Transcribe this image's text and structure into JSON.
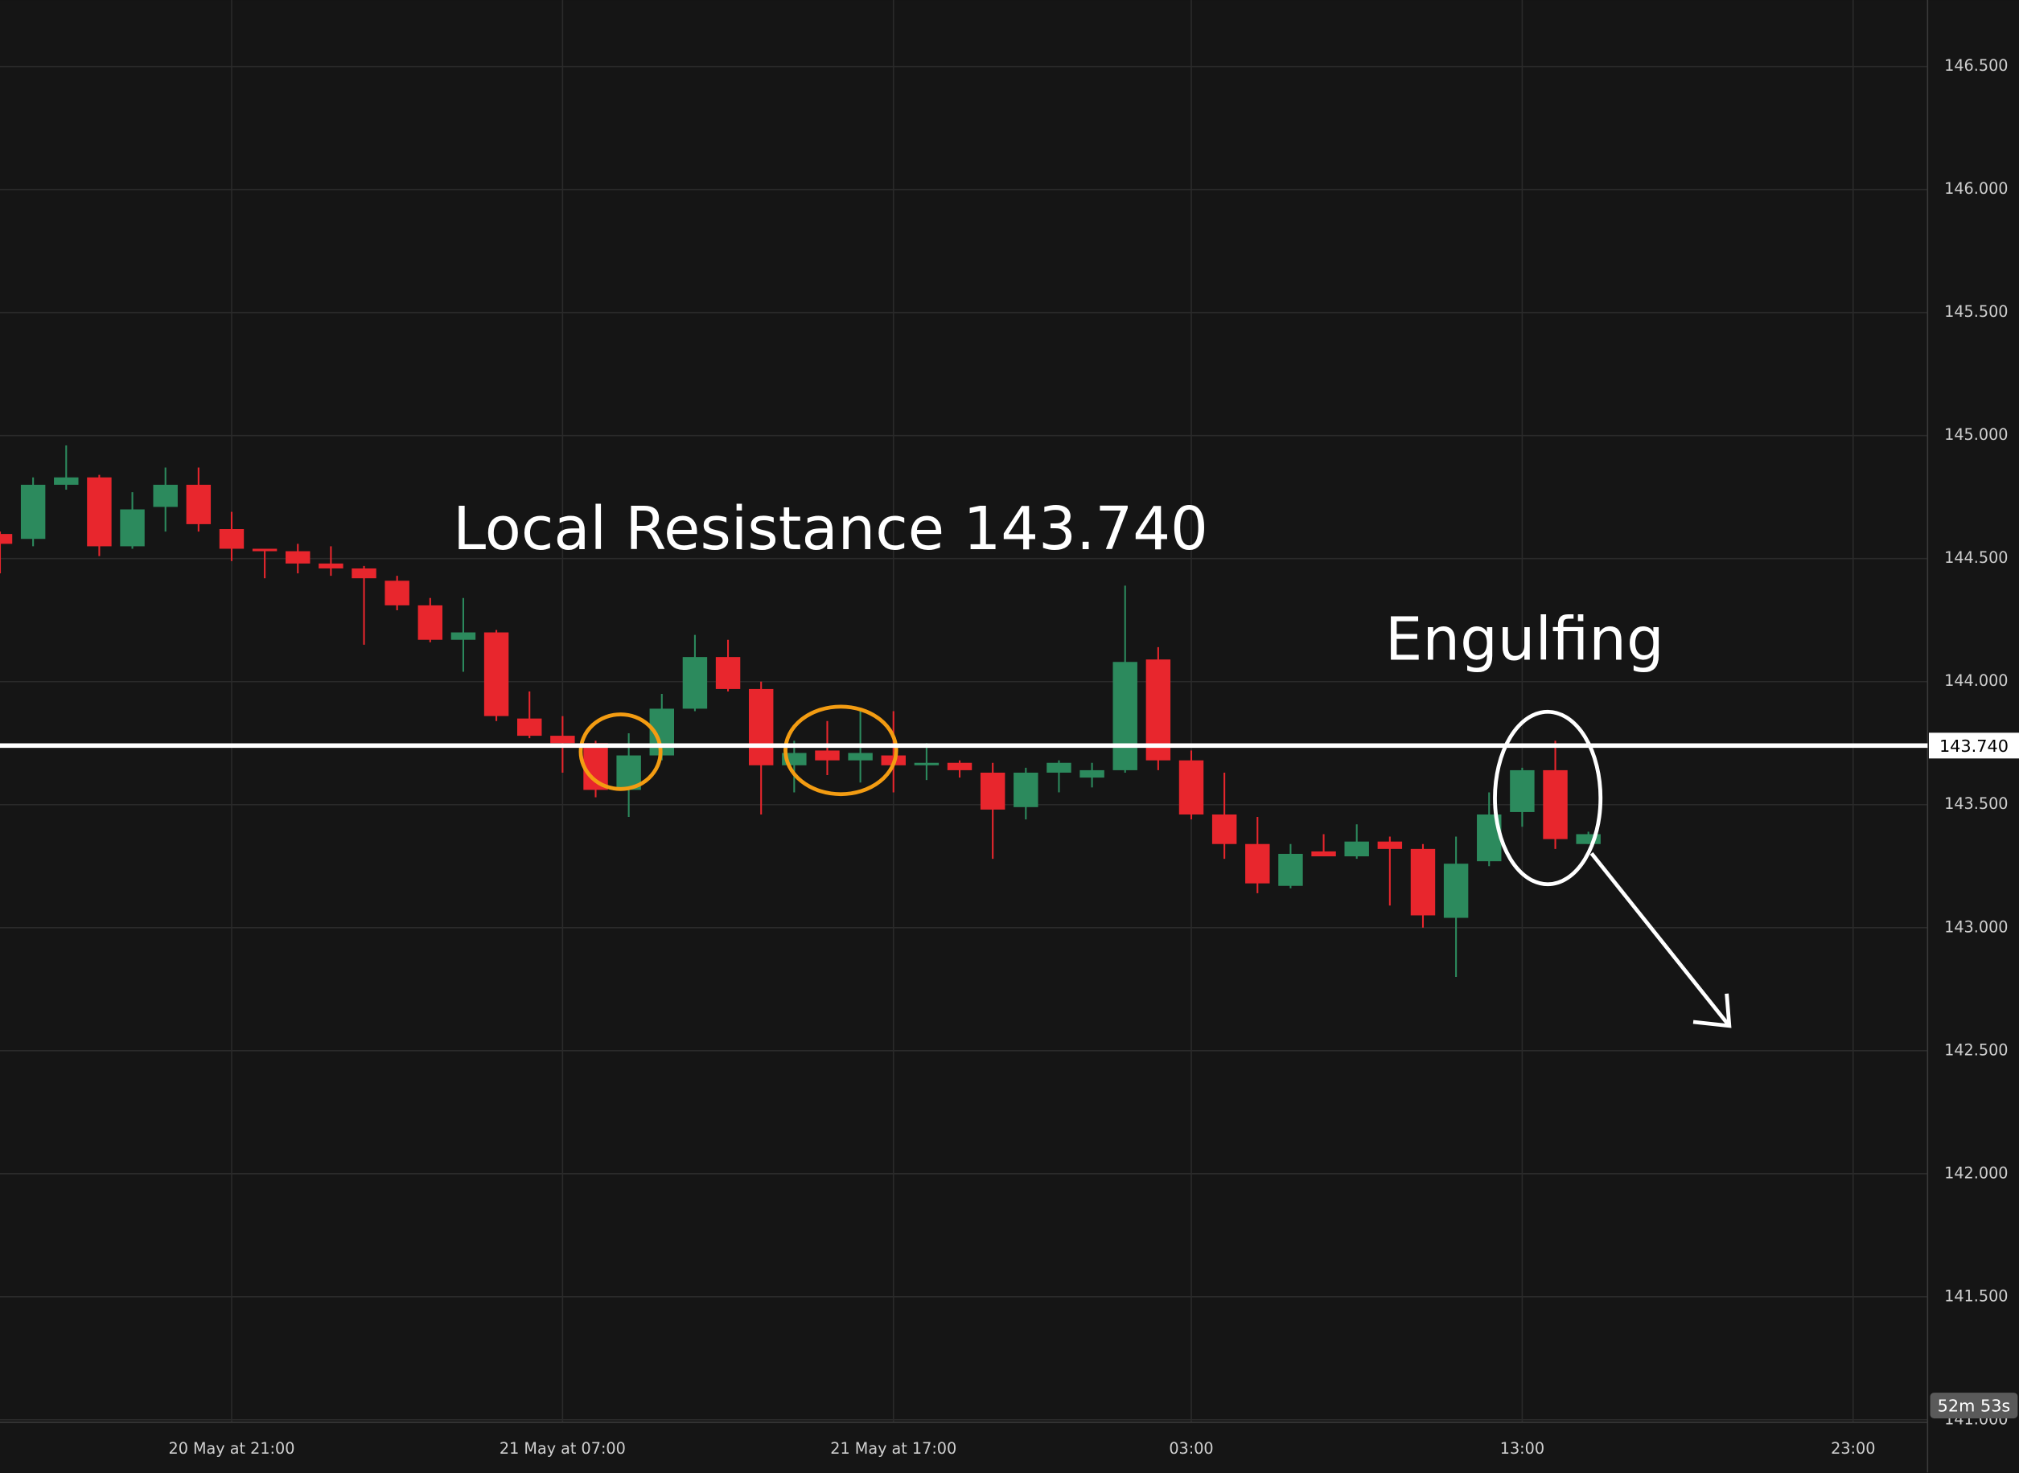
{
  "chart_data": {
    "type": "candlestick",
    "x": [
      0,
      1,
      2,
      3,
      4,
      5,
      6,
      7,
      8,
      9,
      10,
      11,
      12,
      13,
      14,
      15,
      16,
      17,
      18,
      19,
      20,
      21,
      22,
      23,
      24,
      25,
      26,
      27,
      28,
      29,
      30,
      31,
      32,
      33,
      34,
      35,
      36,
      37,
      38,
      39,
      40,
      41,
      42,
      43,
      44,
      45,
      46,
      47,
      48
    ],
    "open": [
      144.6,
      144.58,
      144.8,
      144.83,
      144.55,
      144.71,
      144.8,
      144.62,
      144.54,
      144.53,
      144.48,
      144.46,
      144.41,
      144.31,
      144.17,
      144.2,
      143.85,
      143.78,
      143.75,
      143.56,
      143.7,
      143.89,
      144.1,
      143.97,
      143.66,
      143.72,
      143.68,
      143.7,
      143.66,
      143.67,
      143.63,
      143.49,
      143.63,
      143.61,
      143.64,
      144.09,
      143.68,
      143.46,
      143.34,
      143.17,
      143.31,
      143.29,
      143.35,
      143.32,
      143.04,
      143.27,
      143.47,
      143.64,
      143.34
    ],
    "high": [
      144.61,
      144.83,
      144.96,
      144.84,
      144.77,
      144.87,
      144.87,
      144.69,
      144.54,
      144.56,
      144.55,
      144.47,
      144.43,
      144.34,
      144.34,
      144.21,
      143.96,
      143.86,
      143.76,
      143.79,
      143.95,
      144.19,
      144.17,
      144.0,
      143.76,
      143.84,
      143.88,
      143.88,
      143.75,
      143.68,
      143.67,
      143.65,
      143.68,
      143.67,
      144.39,
      144.14,
      143.72,
      143.63,
      143.45,
      143.34,
      143.38,
      143.42,
      143.37,
      143.34,
      143.37,
      143.55,
      143.65,
      143.76,
      143.39
    ],
    "low": [
      144.44,
      144.55,
      144.78,
      144.51,
      144.54,
      144.61,
      144.61,
      144.49,
      144.42,
      144.44,
      144.43,
      144.15,
      144.29,
      144.16,
      144.04,
      143.84,
      143.77,
      143.63,
      143.53,
      143.45,
      143.68,
      143.88,
      143.96,
      143.46,
      143.55,
      143.62,
      143.59,
      143.55,
      143.6,
      143.61,
      143.28,
      143.44,
      143.55,
      143.57,
      143.63,
      143.64,
      143.44,
      143.28,
      143.14,
      143.16,
      143.29,
      143.28,
      143.09,
      143.0,
      142.8,
      143.25,
      143.41,
      143.32,
      143.34
    ],
    "close": [
      144.56,
      144.8,
      144.83,
      144.55,
      144.7,
      144.8,
      144.64,
      144.54,
      144.53,
      144.48,
      144.46,
      144.42,
      144.31,
      144.17,
      144.2,
      143.86,
      143.78,
      143.75,
      143.56,
      143.7,
      143.89,
      144.1,
      143.97,
      143.66,
      143.71,
      143.68,
      143.71,
      143.66,
      143.67,
      143.64,
      143.48,
      143.63,
      143.67,
      143.64,
      144.08,
      143.68,
      143.46,
      143.34,
      143.18,
      143.3,
      143.29,
      143.35,
      143.32,
      143.05,
      143.26,
      143.46,
      143.64,
      143.36,
      143.38
    ],
    "up_color": "#2c8a5d",
    "down_color": "#e8262d",
    "xlim": [
      0,
      58.25
    ],
    "xticks": [
      {
        "value": 7,
        "label": "20 May at 21:00"
      },
      {
        "value": 17,
        "label": "21 May at 07:00"
      },
      {
        "value": 27,
        "label": "21 May at 17:00"
      },
      {
        "value": 36,
        "label": "03:00"
      },
      {
        "value": 46,
        "label": "13:00"
      },
      {
        "value": 56,
        "label": "23:00"
      }
    ],
    "ylim": [
      140.99,
      146.77
    ],
    "yticks": [
      {
        "value": 141,
        "label": "141.000"
      },
      {
        "value": 141.5,
        "label": "141.500"
      },
      {
        "value": 142,
        "label": "142.000"
      },
      {
        "value": 142.5,
        "label": "142.500"
      },
      {
        "value": 143,
        "label": "143.000"
      },
      {
        "value": 143.5,
        "label": "143.500"
      },
      {
        "value": 144,
        "label": "144.000"
      },
      {
        "value": 144.5,
        "label": "144.500"
      },
      {
        "value": 145,
        "label": "145.000"
      },
      {
        "value": 145.5,
        "label": "145.500"
      },
      {
        "value": 146,
        "label": "146.000"
      },
      {
        "value": 146.5,
        "label": "146.500"
      }
    ],
    "grid": true,
    "resistance": {
      "value": 143.74,
      "label": "143.740"
    },
    "annotations": [
      {
        "text": "Local Resistance 143.740"
      },
      {
        "text": "Engulfing"
      }
    ],
    "countdown": "52m 53s"
  }
}
